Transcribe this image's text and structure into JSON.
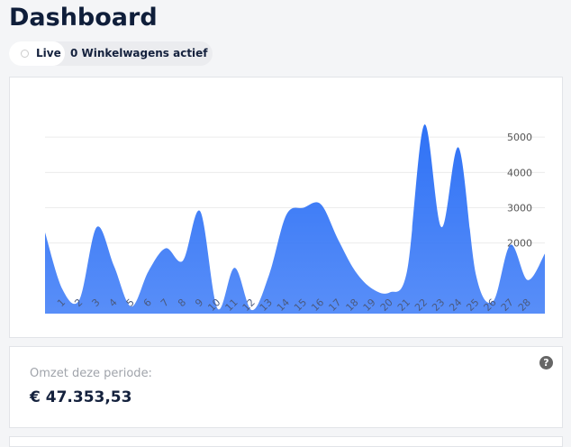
{
  "header": {
    "title": "Dashboard"
  },
  "status": {
    "live": "Live",
    "carts": "0 Winkelwagens actief"
  },
  "chart_data": {
    "type": "area",
    "color": "#2f72f6",
    "categories": [
      null,
      "1",
      "2",
      "3",
      "4",
      "5",
      "6",
      "7",
      "8",
      "9",
      "10",
      "11",
      "12",
      "13",
      "14",
      "15",
      "16",
      "17",
      "18",
      "19",
      "20",
      "21",
      "22",
      "23",
      "24",
      "25",
      "26",
      "27",
      "28",
      null
    ],
    "values": [
      2300,
      700,
      400,
      2450,
      1350,
      200,
      1200,
      1850,
      1500,
      2900,
      150,
      1300,
      100,
      1100,
      2800,
      3000,
      3100,
      2100,
      1200,
      700,
      600,
      1200,
      5350,
      2450,
      4700,
      1100,
      350,
      1950,
      950,
      1700
    ],
    "ylim": [
      0,
      6000
    ],
    "yticks": [
      2000,
      3000,
      4000,
      5000
    ],
    "grid": true
  },
  "summary": {
    "label": "Omzet deze periode:",
    "value": "€ 47.353,53",
    "help": "?"
  }
}
